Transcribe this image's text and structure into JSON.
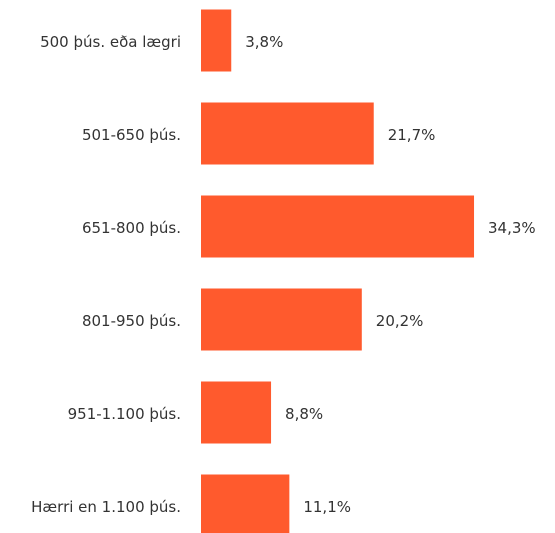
{
  "chart_data": {
    "type": "bar",
    "color": "#ff5a2d",
    "categories": [
      "500 þús. eða lægri",
      "501-650 þús.",
      "651-800 þús.",
      "801-950 þús.",
      "951-1.100 þús.",
      "Hærri en 1.100 þús."
    ],
    "values": [
      3.8,
      21.7,
      34.3,
      20.2,
      8.8,
      11.1
    ],
    "value_labels": [
      "3,8%",
      "21,7%",
      "34,3%",
      "20,2%",
      "8,8%",
      "11,1%"
    ]
  }
}
